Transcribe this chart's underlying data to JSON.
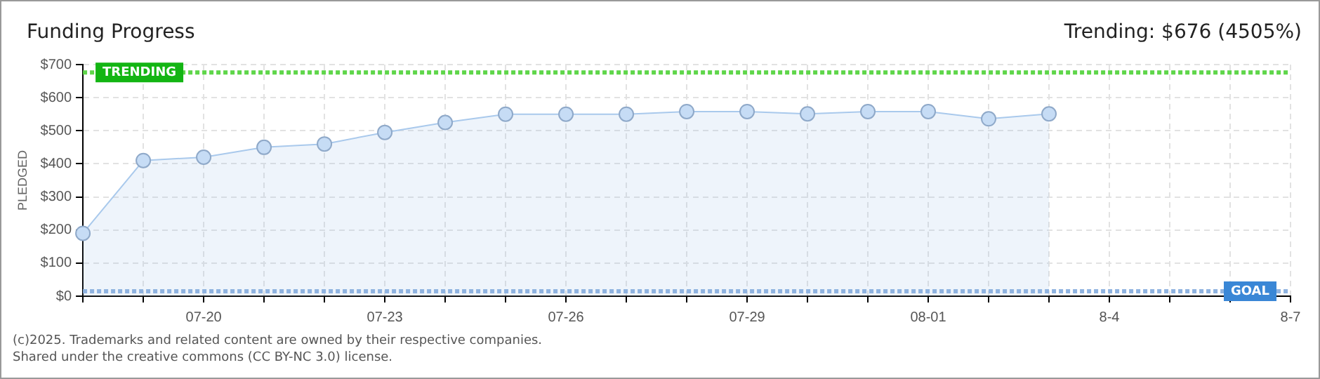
{
  "chart_data": {
    "type": "area",
    "title": "Funding Progress",
    "ylabel": "PLEDGED",
    "categories": [
      null,
      null,
      "07-20",
      null,
      null,
      "07-23",
      null,
      null,
      "07-26",
      null,
      null,
      "07-29",
      null,
      null,
      "08-01",
      null,
      null,
      "8-4",
      null,
      null,
      "8-7"
    ],
    "series": [
      {
        "color": "#a9c9ec",
        "values": [
          190,
          410,
          420,
          450,
          460,
          495,
          525,
          550,
          550,
          550,
          558,
          558,
          551,
          558,
          558,
          536,
          551,
          null,
          null,
          null,
          null
        ]
      }
    ],
    "ylim": [
      0,
      700
    ],
    "yticks": [
      {
        "value": 0,
        "label": "$0"
      },
      {
        "value": 100,
        "label": "$100"
      },
      {
        "value": 200,
        "label": "$200"
      },
      {
        "value": 300,
        "label": "$300"
      },
      {
        "value": 400,
        "label": "$400"
      },
      {
        "value": 500,
        "label": "$500"
      },
      {
        "value": 600,
        "label": "$600"
      },
      {
        "value": 700,
        "label": "$700"
      }
    ],
    "grid": true,
    "legend": false,
    "marker": "circle",
    "ref_lines": [
      {
        "axis": "y",
        "value": 676,
        "label": "TRENDING",
        "color": "#5fd64a",
        "line_style": "dotted"
      },
      {
        "axis": "y",
        "value": 15,
        "label": "GOAL",
        "color": "#8fb3e0",
        "line_style": "dotted"
      }
    ],
    "annotations": [
      "Trending: $676 (4505%)",
      "(c)2025. Trademarks and related content are owned by their respective companies.",
      "Shared under the creative commons (CC BY-NC 3.0) license."
    ]
  }
}
